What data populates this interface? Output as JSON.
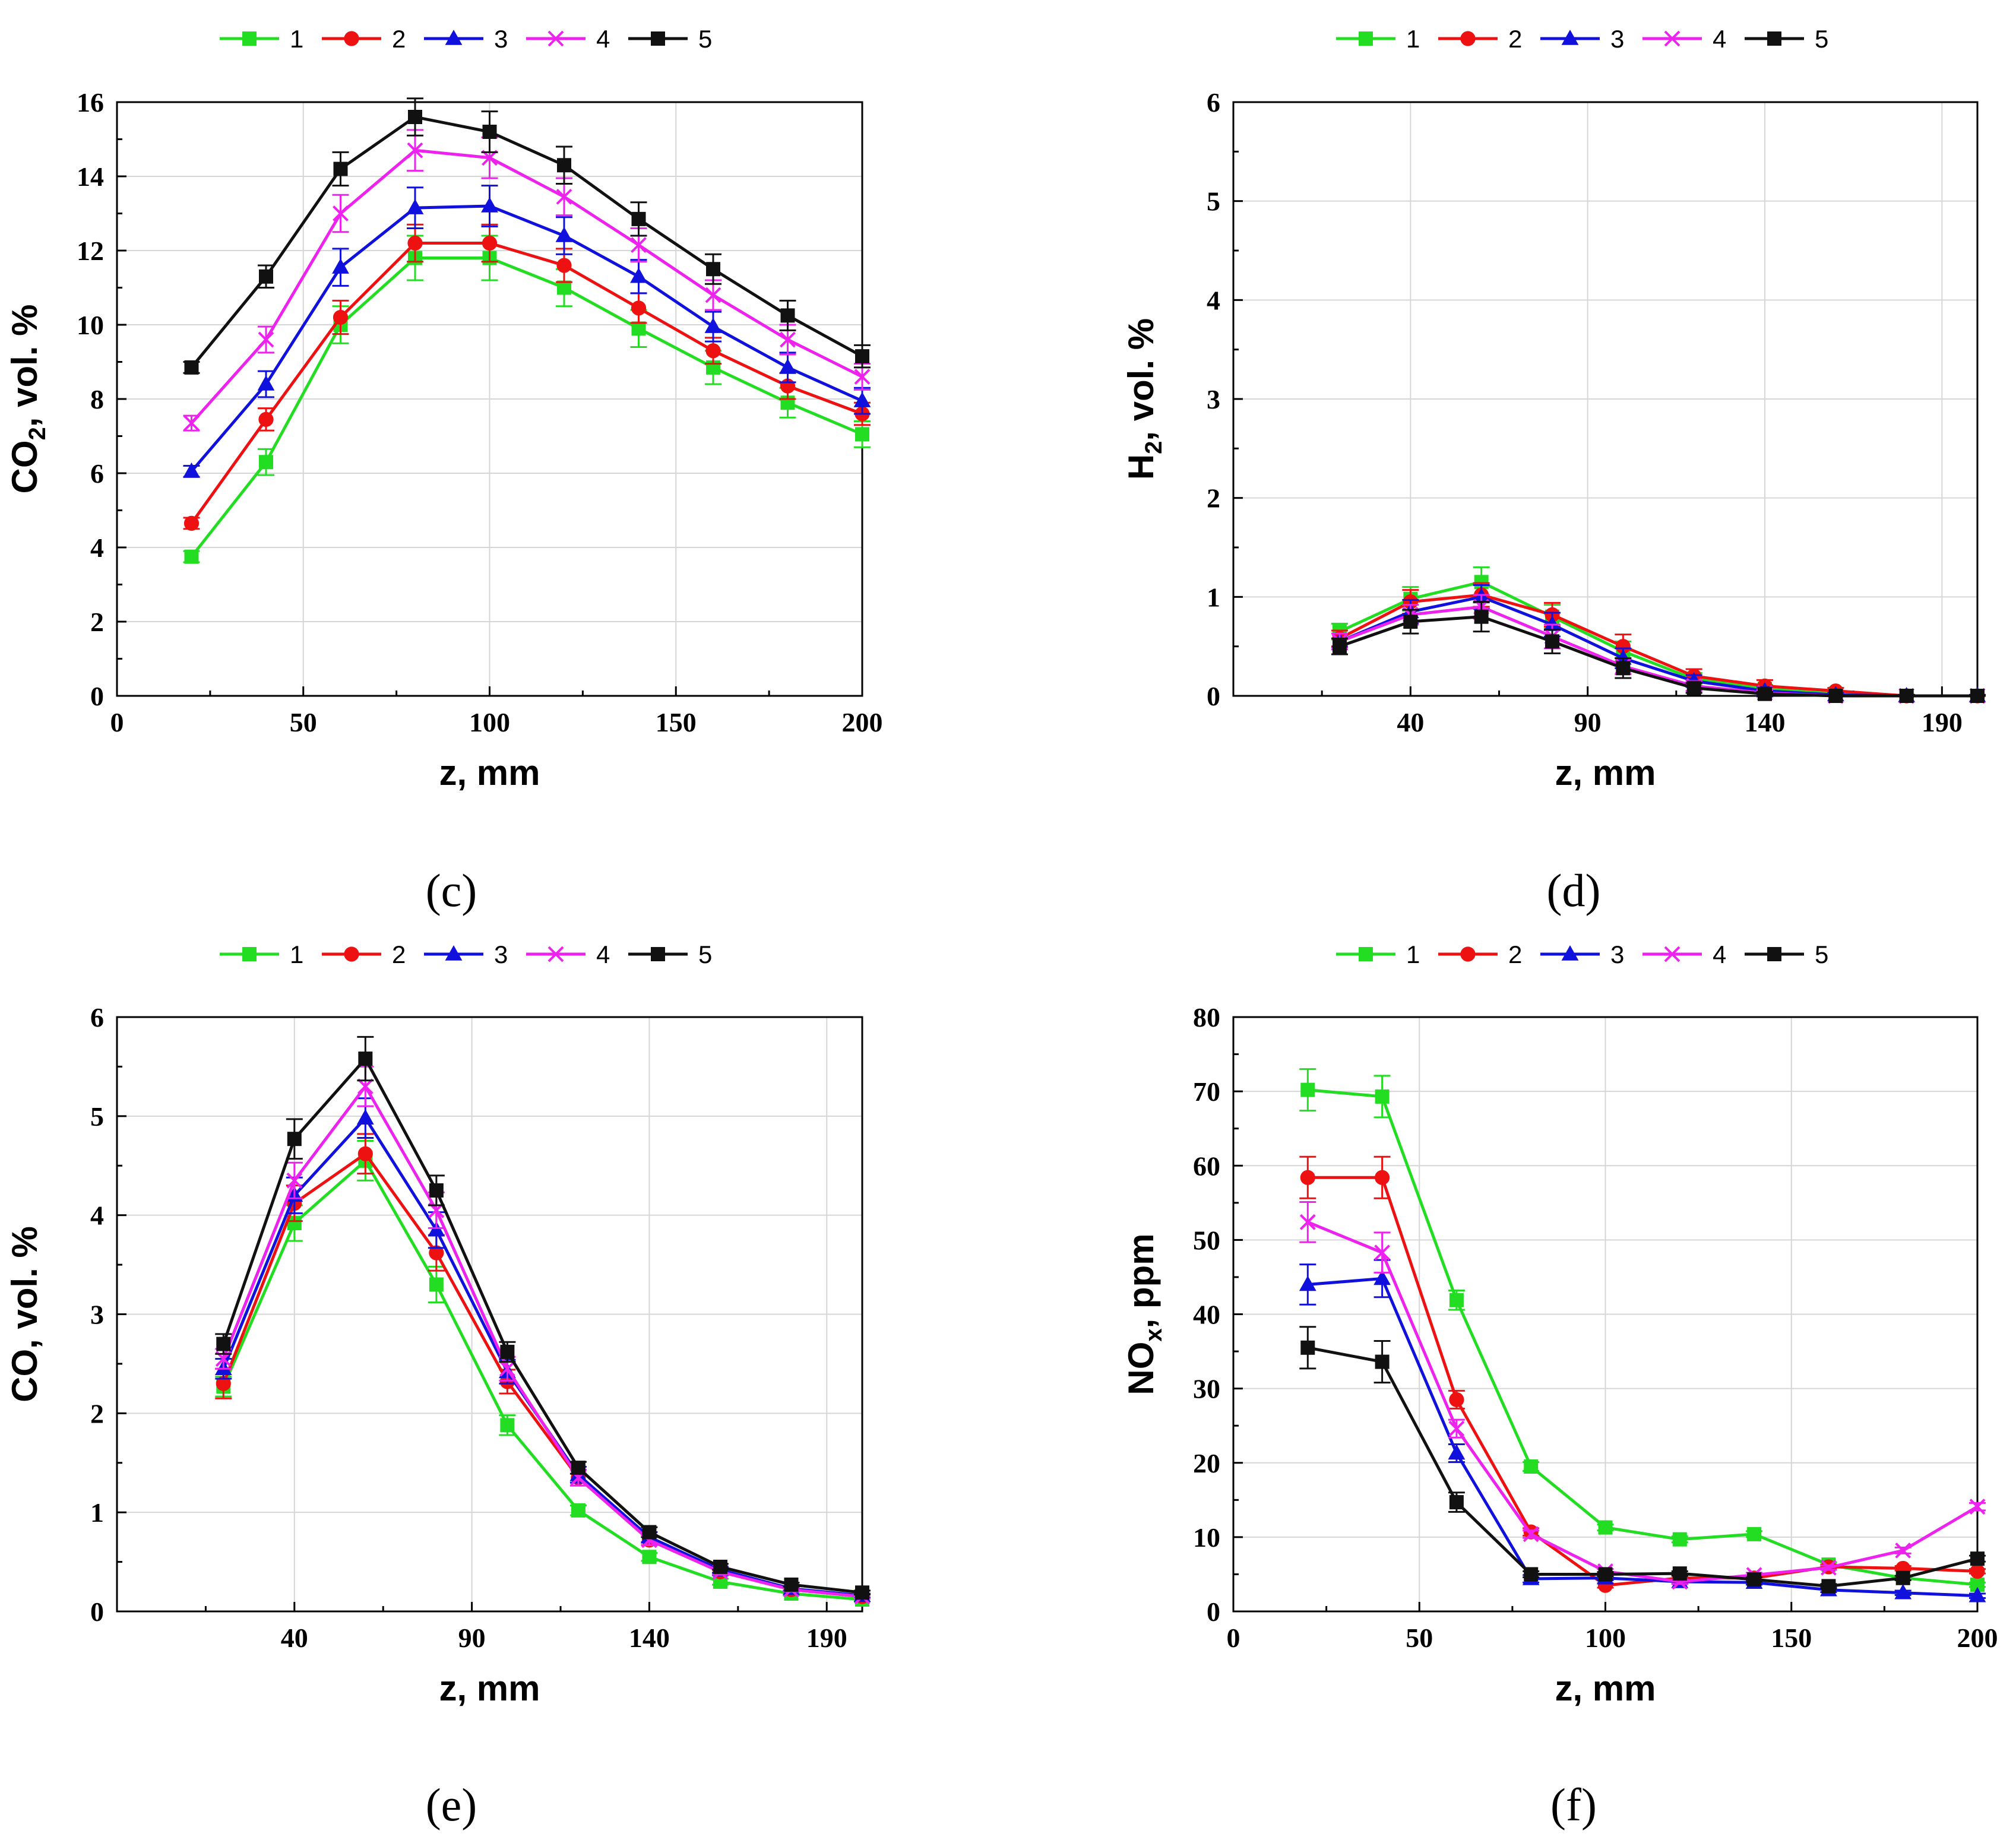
{
  "chart_data": [
    {
      "id": "c",
      "type": "line",
      "panel_label": "(c)",
      "ylabel_main": "CO",
      "ylabel_sub": "2",
      "ylabel_rest": ", vol. %",
      "xlabel": "z, mm",
      "xlim": [
        0,
        200
      ],
      "ylim": [
        0,
        16
      ],
      "xticks": [
        0,
        50,
        100,
        150,
        200
      ],
      "yticks": [
        0,
        2,
        4,
        6,
        8,
        10,
        12,
        14,
        16
      ],
      "x": [
        20,
        40,
        60,
        80,
        100,
        120,
        140,
        160,
        180,
        200
      ],
      "series": [
        {
          "name": "1",
          "color": "#22dd22",
          "marker": "square",
          "values": [
            3.75,
            6.3,
            10.0,
            11.8,
            11.8,
            11.0,
            9.9,
            8.85,
            7.9,
            7.05
          ],
          "err": [
            0.15,
            0.35,
            0.5,
            0.6,
            0.6,
            0.5,
            0.5,
            0.45,
            0.4,
            0.35
          ]
        },
        {
          "name": "2",
          "color": "#ee1111",
          "marker": "circle",
          "values": [
            4.65,
            7.45,
            10.2,
            12.2,
            12.2,
            11.6,
            10.45,
            9.3,
            8.35,
            7.6
          ],
          "err": [
            0.15,
            0.3,
            0.45,
            0.5,
            0.5,
            0.45,
            0.4,
            0.35,
            0.35,
            0.3
          ]
        },
        {
          "name": "3",
          "color": "#1111dd",
          "marker": "triangle",
          "values": [
            6.05,
            8.4,
            11.55,
            13.15,
            13.2,
            12.4,
            11.3,
            9.95,
            8.85,
            7.95
          ],
          "err": [
            0.15,
            0.35,
            0.5,
            0.55,
            0.55,
            0.5,
            0.45,
            0.4,
            0.4,
            0.35
          ]
        },
        {
          "name": "4",
          "color": "#ee22ee",
          "marker": "x",
          "values": [
            7.35,
            9.6,
            13.0,
            14.7,
            14.5,
            13.45,
            12.15,
            10.8,
            9.6,
            8.6
          ],
          "err": [
            0.2,
            0.35,
            0.5,
            0.55,
            0.55,
            0.5,
            0.45,
            0.4,
            0.4,
            0.35
          ]
        },
        {
          "name": "5",
          "color": "#111111",
          "marker": "square",
          "values": [
            8.85,
            11.3,
            14.2,
            15.6,
            15.2,
            14.3,
            12.85,
            11.5,
            10.25,
            9.15
          ],
          "err": [
            0.15,
            0.3,
            0.45,
            0.5,
            0.55,
            0.5,
            0.45,
            0.4,
            0.4,
            0.3
          ]
        }
      ]
    },
    {
      "id": "d",
      "type": "line",
      "panel_label": "(d)",
      "ylabel_main": "H",
      "ylabel_sub": "2",
      "ylabel_rest": ", vol. %",
      "xlabel": "z, mm",
      "xlim": [
        -10,
        200
      ],
      "ylim": [
        0,
        6
      ],
      "xticks": [
        40,
        90,
        140,
        190
      ],
      "yticks": [
        0,
        1,
        2,
        3,
        4,
        5,
        6
      ],
      "x": [
        20,
        40,
        60,
        80,
        100,
        120,
        140,
        160,
        180,
        200
      ],
      "series": [
        {
          "name": "1",
          "color": "#22dd22",
          "marker": "square",
          "values": [
            0.65,
            0.98,
            1.15,
            0.8,
            0.45,
            0.17,
            0.07,
            0.02,
            0.0,
            0.0
          ],
          "err": [
            0.08,
            0.12,
            0.15,
            0.12,
            0.1,
            0.06,
            0.04,
            0.02,
            0.01,
            0.01
          ]
        },
        {
          "name": "2",
          "color": "#ee1111",
          "marker": "circle",
          "values": [
            0.58,
            0.95,
            1.02,
            0.82,
            0.5,
            0.2,
            0.1,
            0.05,
            0.0,
            0.0
          ],
          "err": [
            0.08,
            0.12,
            0.12,
            0.12,
            0.12,
            0.07,
            0.06,
            0.03,
            0.01,
            0.01
          ]
        },
        {
          "name": "3",
          "color": "#1111dd",
          "marker": "triangle",
          "values": [
            0.55,
            0.85,
            1.0,
            0.72,
            0.38,
            0.15,
            0.05,
            0.01,
            0.0,
            0.0
          ],
          "err": [
            0.08,
            0.12,
            0.12,
            0.12,
            0.1,
            0.06,
            0.04,
            0.02,
            0.01,
            0.01
          ]
        },
        {
          "name": "4",
          "color": "#ee22ee",
          "marker": "x",
          "values": [
            0.55,
            0.82,
            0.9,
            0.6,
            0.3,
            0.1,
            0.03,
            0.0,
            0.0,
            0.0
          ],
          "err": [
            0.08,
            0.1,
            0.12,
            0.12,
            0.08,
            0.05,
            0.03,
            0.01,
            0.01,
            0.01
          ]
        },
        {
          "name": "5",
          "color": "#111111",
          "marker": "square",
          "values": [
            0.5,
            0.75,
            0.8,
            0.55,
            0.28,
            0.08,
            0.02,
            0.0,
            0.0,
            0.0
          ],
          "err": [
            0.08,
            0.12,
            0.15,
            0.12,
            0.1,
            0.05,
            0.02,
            0.01,
            0.01,
            0.01
          ]
        }
      ]
    },
    {
      "id": "e",
      "type": "line",
      "panel_label": "(e)",
      "ylabel_main": "CO, vol. %",
      "ylabel_sub": "",
      "ylabel_rest": "",
      "xlabel": "z, mm",
      "xlim": [
        -10,
        200
      ],
      "ylim": [
        0,
        6
      ],
      "xticks": [
        40,
        90,
        140,
        190
      ],
      "yticks": [
        0,
        1,
        2,
        3,
        4,
        5,
        6
      ],
      "x": [
        20,
        40,
        60,
        80,
        100,
        120,
        140,
        160,
        180,
        200
      ],
      "series": [
        {
          "name": "1",
          "color": "#22dd22",
          "marker": "square",
          "values": [
            2.27,
            3.92,
            4.55,
            3.3,
            1.88,
            1.02,
            0.55,
            0.3,
            0.18,
            0.12
          ],
          "err": [
            0.1,
            0.18,
            0.2,
            0.18,
            0.1,
            0.05,
            0.04,
            0.03,
            0.02,
            0.02
          ]
        },
        {
          "name": "2",
          "color": "#ee1111",
          "marker": "circle",
          "values": [
            2.3,
            4.12,
            4.62,
            3.62,
            2.32,
            1.35,
            0.72,
            0.4,
            0.22,
            0.15
          ],
          "err": [
            0.15,
            0.18,
            0.2,
            0.18,
            0.12,
            0.08,
            0.05,
            0.03,
            0.02,
            0.02
          ]
        },
        {
          "name": "3",
          "color": "#1111dd",
          "marker": "triangle",
          "values": [
            2.45,
            4.2,
            4.98,
            3.85,
            2.42,
            1.38,
            0.75,
            0.42,
            0.23,
            0.16
          ],
          "err": [
            0.1,
            0.18,
            0.2,
            0.18,
            0.12,
            0.08,
            0.05,
            0.03,
            0.02,
            0.02
          ]
        },
        {
          "name": "4",
          "color": "#ee22ee",
          "marker": "x",
          "values": [
            2.55,
            4.35,
            5.3,
            4.05,
            2.45,
            1.35,
            0.72,
            0.4,
            0.22,
            0.15
          ],
          "err": [
            0.1,
            0.18,
            0.2,
            0.18,
            0.12,
            0.08,
            0.05,
            0.03,
            0.02,
            0.02
          ]
        },
        {
          "name": "5",
          "color": "#111111",
          "marker": "square",
          "values": [
            2.7,
            4.77,
            5.58,
            4.25,
            2.62,
            1.45,
            0.8,
            0.45,
            0.27,
            0.19
          ],
          "err": [
            0.1,
            0.2,
            0.22,
            0.15,
            0.1,
            0.06,
            0.05,
            0.03,
            0.02,
            0.02
          ]
        }
      ]
    },
    {
      "id": "f",
      "type": "line",
      "panel_label": "(f)",
      "ylabel_main": "NO",
      "ylabel_sub": "x",
      "ylabel_rest": ", ppm",
      "xlabel": "z, mm",
      "xlim": [
        0,
        200
      ],
      "ylim": [
        0,
        80
      ],
      "xticks": [
        0,
        50,
        100,
        150,
        200
      ],
      "yticks": [
        0,
        10,
        20,
        30,
        40,
        50,
        60,
        70,
        80
      ],
      "x": [
        20,
        40,
        60,
        80,
        100,
        120,
        140,
        160,
        180,
        200
      ],
      "series": [
        {
          "name": "1",
          "color": "#22dd22",
          "marker": "square",
          "values": [
            70.2,
            69.3,
            41.9,
            19.5,
            11.3,
            9.7,
            10.4,
            6.3,
            4.5,
            3.6
          ],
          "err": [
            2.8,
            2.8,
            1.3,
            0.6,
            0.4,
            0.4,
            0.4,
            0.3,
            0.3,
            0.3
          ]
        },
        {
          "name": "2",
          "color": "#ee1111",
          "marker": "circle",
          "values": [
            58.4,
            58.4,
            28.5,
            10.7,
            3.5,
            4.5,
            4.5,
            6.0,
            5.8,
            5.4
          ],
          "err": [
            2.8,
            2.8,
            1.2,
            0.5,
            0.3,
            0.3,
            0.3,
            0.3,
            0.3,
            0.3
          ]
        },
        {
          "name": "3",
          "color": "#1111dd",
          "marker": "triangle",
          "values": [
            44.0,
            44.8,
            21.3,
            4.4,
            4.5,
            4.0,
            3.9,
            2.9,
            2.5,
            2.1
          ],
          "err": [
            2.7,
            2.5,
            1.2,
            0.5,
            0.3,
            0.3,
            0.3,
            0.3,
            0.3,
            0.3
          ]
        },
        {
          "name": "4",
          "color": "#ee22ee",
          "marker": "x",
          "values": [
            52.4,
            48.3,
            24.6,
            10.4,
            5.4,
            4.0,
            4.9,
            5.9,
            8.2,
            14.1
          ],
          "err": [
            2.7,
            2.7,
            1.2,
            0.5,
            0.3,
            0.3,
            0.3,
            0.3,
            0.4,
            0.5
          ]
        },
        {
          "name": "5",
          "color": "#111111",
          "marker": "square",
          "values": [
            35.5,
            33.6,
            14.7,
            5.0,
            5.0,
            5.1,
            4.3,
            3.4,
            4.5,
            7.1
          ],
          "err": [
            2.8,
            2.8,
            1.3,
            0.4,
            0.3,
            0.3,
            0.3,
            0.3,
            0.3,
            0.4
          ]
        }
      ]
    }
  ]
}
